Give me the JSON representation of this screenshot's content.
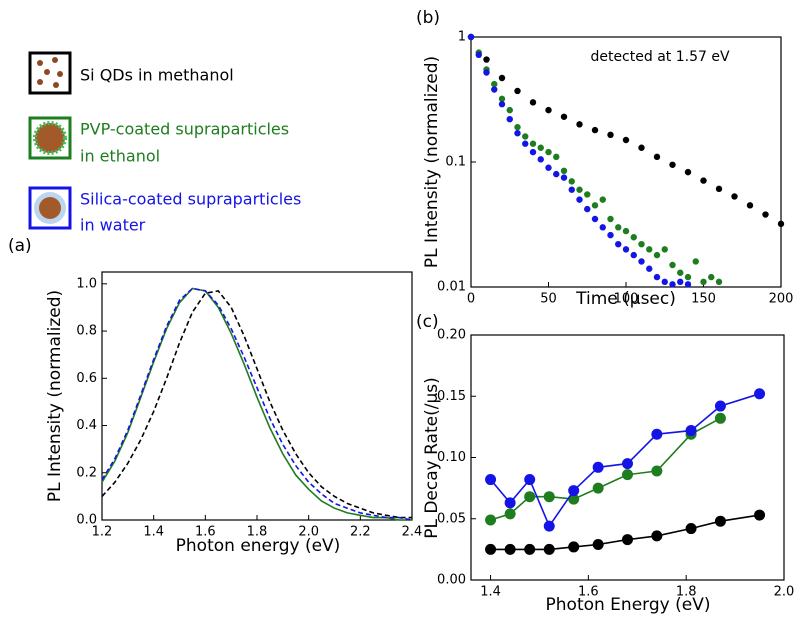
{
  "legend": {
    "entries": [
      {
        "lines": [
          "Si QDs in methanol"
        ],
        "color": "#000000"
      },
      {
        "lines": [
          "PVP-coated supraparticles",
          "in ethanol"
        ],
        "color": "#1e7d1e"
      },
      {
        "lines": [
          "Silica-coated supraparticles",
          "in water"
        ],
        "color": "#1414e6"
      }
    ]
  },
  "chart_data": [
    {
      "type": "line",
      "panel_label": "(a)",
      "x_label": "Photon energy (eV)",
      "y_label": "PL Intensity (normalized)",
      "xlim": [
        1.2,
        2.4
      ],
      "ylim": [
        0,
        1.05
      ],
      "xticks": [
        1.2,
        1.4,
        1.6,
        1.8,
        {
          "value": 2.0,
          "label": "2.0"
        },
        2.2,
        2.4
      ],
      "yticks": [
        {
          "value": 0,
          "label": "0.0"
        },
        0.2,
        0.4,
        0.6,
        0.8,
        {
          "value": 1.0,
          "label": "1.0"
        }
      ],
      "x": [
        1.2,
        1.25,
        1.3,
        1.35,
        1.4,
        1.45,
        1.5,
        1.55,
        1.6,
        1.65,
        1.7,
        1.75,
        1.8,
        1.85,
        1.9,
        1.95,
        2.0,
        2.05,
        2.1,
        2.15,
        2.2,
        2.25,
        2.3,
        2.35,
        2.4
      ],
      "series": [
        {
          "color": "#000000",
          "linestyle": "dashed",
          "values": [
            0.1,
            0.16,
            0.24,
            0.34,
            0.46,
            0.6,
            0.75,
            0.88,
            0.96,
            0.97,
            0.9,
            0.78,
            0.64,
            0.5,
            0.38,
            0.28,
            0.2,
            0.14,
            0.1,
            0.07,
            0.05,
            0.03,
            0.02,
            0.01,
            0.01
          ]
        },
        {
          "color": "#1e7d1e",
          "linestyle": "solid",
          "values": [
            0.16,
            0.25,
            0.37,
            0.52,
            0.67,
            0.81,
            0.92,
            0.98,
            0.97,
            0.9,
            0.79,
            0.66,
            0.52,
            0.39,
            0.28,
            0.19,
            0.13,
            0.08,
            0.05,
            0.03,
            0.02,
            0.01,
            0.01,
            0,
            0
          ]
        },
        {
          "color": "#1414e6",
          "linestyle": "dashed",
          "values": [
            0.17,
            0.26,
            0.38,
            0.53,
            0.68,
            0.82,
            0.93,
            0.98,
            0.97,
            0.91,
            0.81,
            0.69,
            0.56,
            0.43,
            0.32,
            0.23,
            0.16,
            0.11,
            0.07,
            0.05,
            0.03,
            0.02,
            0.01,
            0.01,
            0
          ]
        }
      ]
    },
    {
      "type": "scatter",
      "panel_label": "(b)",
      "x_label": "Time (μsec)",
      "y_label": "PL Intensity (normalized)",
      "annotation": "detected at 1.57 eV",
      "yscale": "log",
      "xlim": [
        0,
        200
      ],
      "ylim": [
        0.01,
        1
      ],
      "xticks": [
        0,
        50,
        100,
        150,
        200
      ],
      "yticks": [
        0.01,
        0.1,
        1
      ],
      "series": [
        {
          "color": "#000000",
          "x": [
            0,
            10,
            20,
            30,
            40,
            50,
            60,
            70,
            80,
            90,
            100,
            110,
            120,
            130,
            140,
            150,
            160,
            170,
            180,
            190,
            200
          ],
          "values": [
            1.0,
            0.66,
            0.47,
            0.37,
            0.3,
            0.26,
            0.23,
            0.2,
            0.18,
            0.165,
            0.15,
            0.13,
            0.11,
            0.095,
            0.083,
            0.071,
            0.061,
            0.053,
            0.045,
            0.038,
            0.032
          ]
        },
        {
          "color": "#1e7d1e",
          "x": [
            0,
            5,
            10,
            15,
            20,
            25,
            30,
            35,
            40,
            45,
            50,
            55,
            60,
            65,
            70,
            75,
            80,
            85,
            90,
            95,
            100,
            105,
            110,
            115,
            120,
            125,
            130,
            135,
            140,
            145,
            150,
            155,
            160
          ],
          "values": [
            1.0,
            0.75,
            0.55,
            0.42,
            0.32,
            0.26,
            0.19,
            0.16,
            0.14,
            0.13,
            0.12,
            0.11,
            0.085,
            0.07,
            0.06,
            0.055,
            0.045,
            0.05,
            0.035,
            0.03,
            0.028,
            0.025,
            0.022,
            0.02,
            0.018,
            0.02,
            0.015,
            0.013,
            0.012,
            0.016,
            0.011,
            0.012,
            0.011
          ]
        },
        {
          "color": "#1414e6",
          "x": [
            0,
            5,
            10,
            15,
            20,
            25,
            30,
            35,
            40,
            45,
            50,
            55,
            60,
            65,
            70,
            75,
            80,
            85,
            90,
            95,
            100,
            105,
            110,
            115,
            120,
            125,
            130,
            135,
            140
          ],
          "values": [
            1.0,
            0.72,
            0.52,
            0.38,
            0.29,
            0.22,
            0.17,
            0.14,
            0.12,
            0.105,
            0.09,
            0.08,
            0.075,
            0.06,
            0.05,
            0.042,
            0.035,
            0.03,
            0.026,
            0.022,
            0.02,
            0.018,
            0.016,
            0.014,
            0.012,
            0.011,
            0.0105,
            0.011,
            0.0105
          ]
        }
      ]
    },
    {
      "type": "line",
      "markers": true,
      "panel_label": "(c)",
      "x_label": "Photon Energy (eV)",
      "y_label": "PL Decay Rate(/μs)",
      "xlim": [
        1.36,
        2.0
      ],
      "ylim": [
        0,
        0.2
      ],
      "xticks": [
        1.4,
        1.6,
        1.8,
        {
          "value": 2.0,
          "label": "2.0"
        }
      ],
      "yticks": [
        {
          "value": 0,
          "label": "0.00"
        },
        {
          "value": 0.05,
          "label": "0.05"
        },
        {
          "value": 0.1,
          "label": "0.10"
        },
        {
          "value": 0.15,
          "label": "0.15"
        },
        {
          "value": 0.2,
          "label": "0.20"
        }
      ],
      "x": [
        1.4,
        1.44,
        1.48,
        1.52,
        1.57,
        1.62,
        1.68,
        1.74,
        1.81,
        1.87,
        1.95
      ],
      "series": [
        {
          "color": "#000000",
          "linestyle": "solid",
          "values": [
            0.025,
            0.025,
            0.025,
            0.025,
            0.027,
            0.029,
            0.033,
            0.036,
            0.042,
            0.048,
            0.053
          ]
        },
        {
          "color": "#1e7d1e",
          "linestyle": "solid",
          "values": [
            0.049,
            0.054,
            0.068,
            0.068,
            0.066,
            0.075,
            0.086,
            0.089,
            0.119,
            0.132,
            null
          ]
        },
        {
          "color": "#1414e6",
          "linestyle": "solid",
          "values": [
            0.082,
            0.063,
            0.082,
            0.044,
            0.073,
            0.092,
            0.095,
            0.119,
            0.122,
            0.142,
            0.152
          ]
        }
      ]
    }
  ]
}
